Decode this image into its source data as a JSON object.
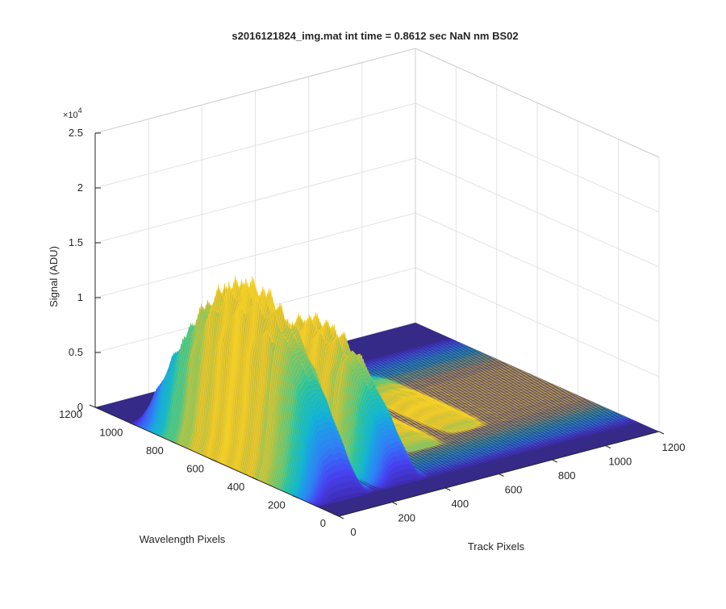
{
  "chart_data": {
    "type": "surface3d",
    "title": "s2016121824_img.mat int time = 0.8612 sec  NaN nm BS02",
    "xlabel": "Track Pixels",
    "ylabel": "Wavelength Pixels",
    "zlabel": "Signal (ADU)",
    "z_exponent": "×10",
    "z_exponent_power": "4",
    "xlim": [
      0,
      1200
    ],
    "ylim": [
      0,
      1200
    ],
    "zlim": [
      0,
      25000
    ],
    "x_ticks": [
      0,
      200,
      400,
      600,
      800,
      1000,
      1200
    ],
    "x_tick_labels": [
      "0",
      "200",
      "400",
      "600",
      "800",
      "1000",
      "1200"
    ],
    "y_ticks": [
      0,
      200,
      400,
      600,
      800,
      1000,
      1200
    ],
    "y_tick_labels": [
      "0",
      "200",
      "400",
      "600",
      "800",
      "1000",
      "1200"
    ],
    "z_ticks": [
      0,
      5000,
      10000,
      15000,
      20000,
      25000
    ],
    "z_tick_labels": [
      "0",
      "0.5",
      "1",
      "1.5",
      "2",
      "2.5"
    ],
    "grid": true,
    "colormap": [
      "#3e26a8",
      "#4743f1",
      "#2e84f5",
      "#12b2d8",
      "#2cc49e",
      "#87c85f",
      "#d3bb36",
      "#f9d324"
    ],
    "surface_color_low": "#352a87",
    "peaks": [
      {
        "track_center": 105,
        "track_width": 75,
        "wavelength_start": 100,
        "wavelength_end": 1080,
        "max_signal": 16500
      },
      {
        "track_center": 330,
        "track_width": 60,
        "wavelength_start": 100,
        "wavelength_end": 1000,
        "max_signal": 12000
      },
      {
        "track_center": 560,
        "track_width": 60,
        "wavelength_start": 300,
        "wavelength_end": 950,
        "max_signal": 900
      },
      {
        "track_center": 760,
        "track_width": 60,
        "wavelength_start": 350,
        "wavelength_end": 950,
        "max_signal": 700
      }
    ]
  }
}
